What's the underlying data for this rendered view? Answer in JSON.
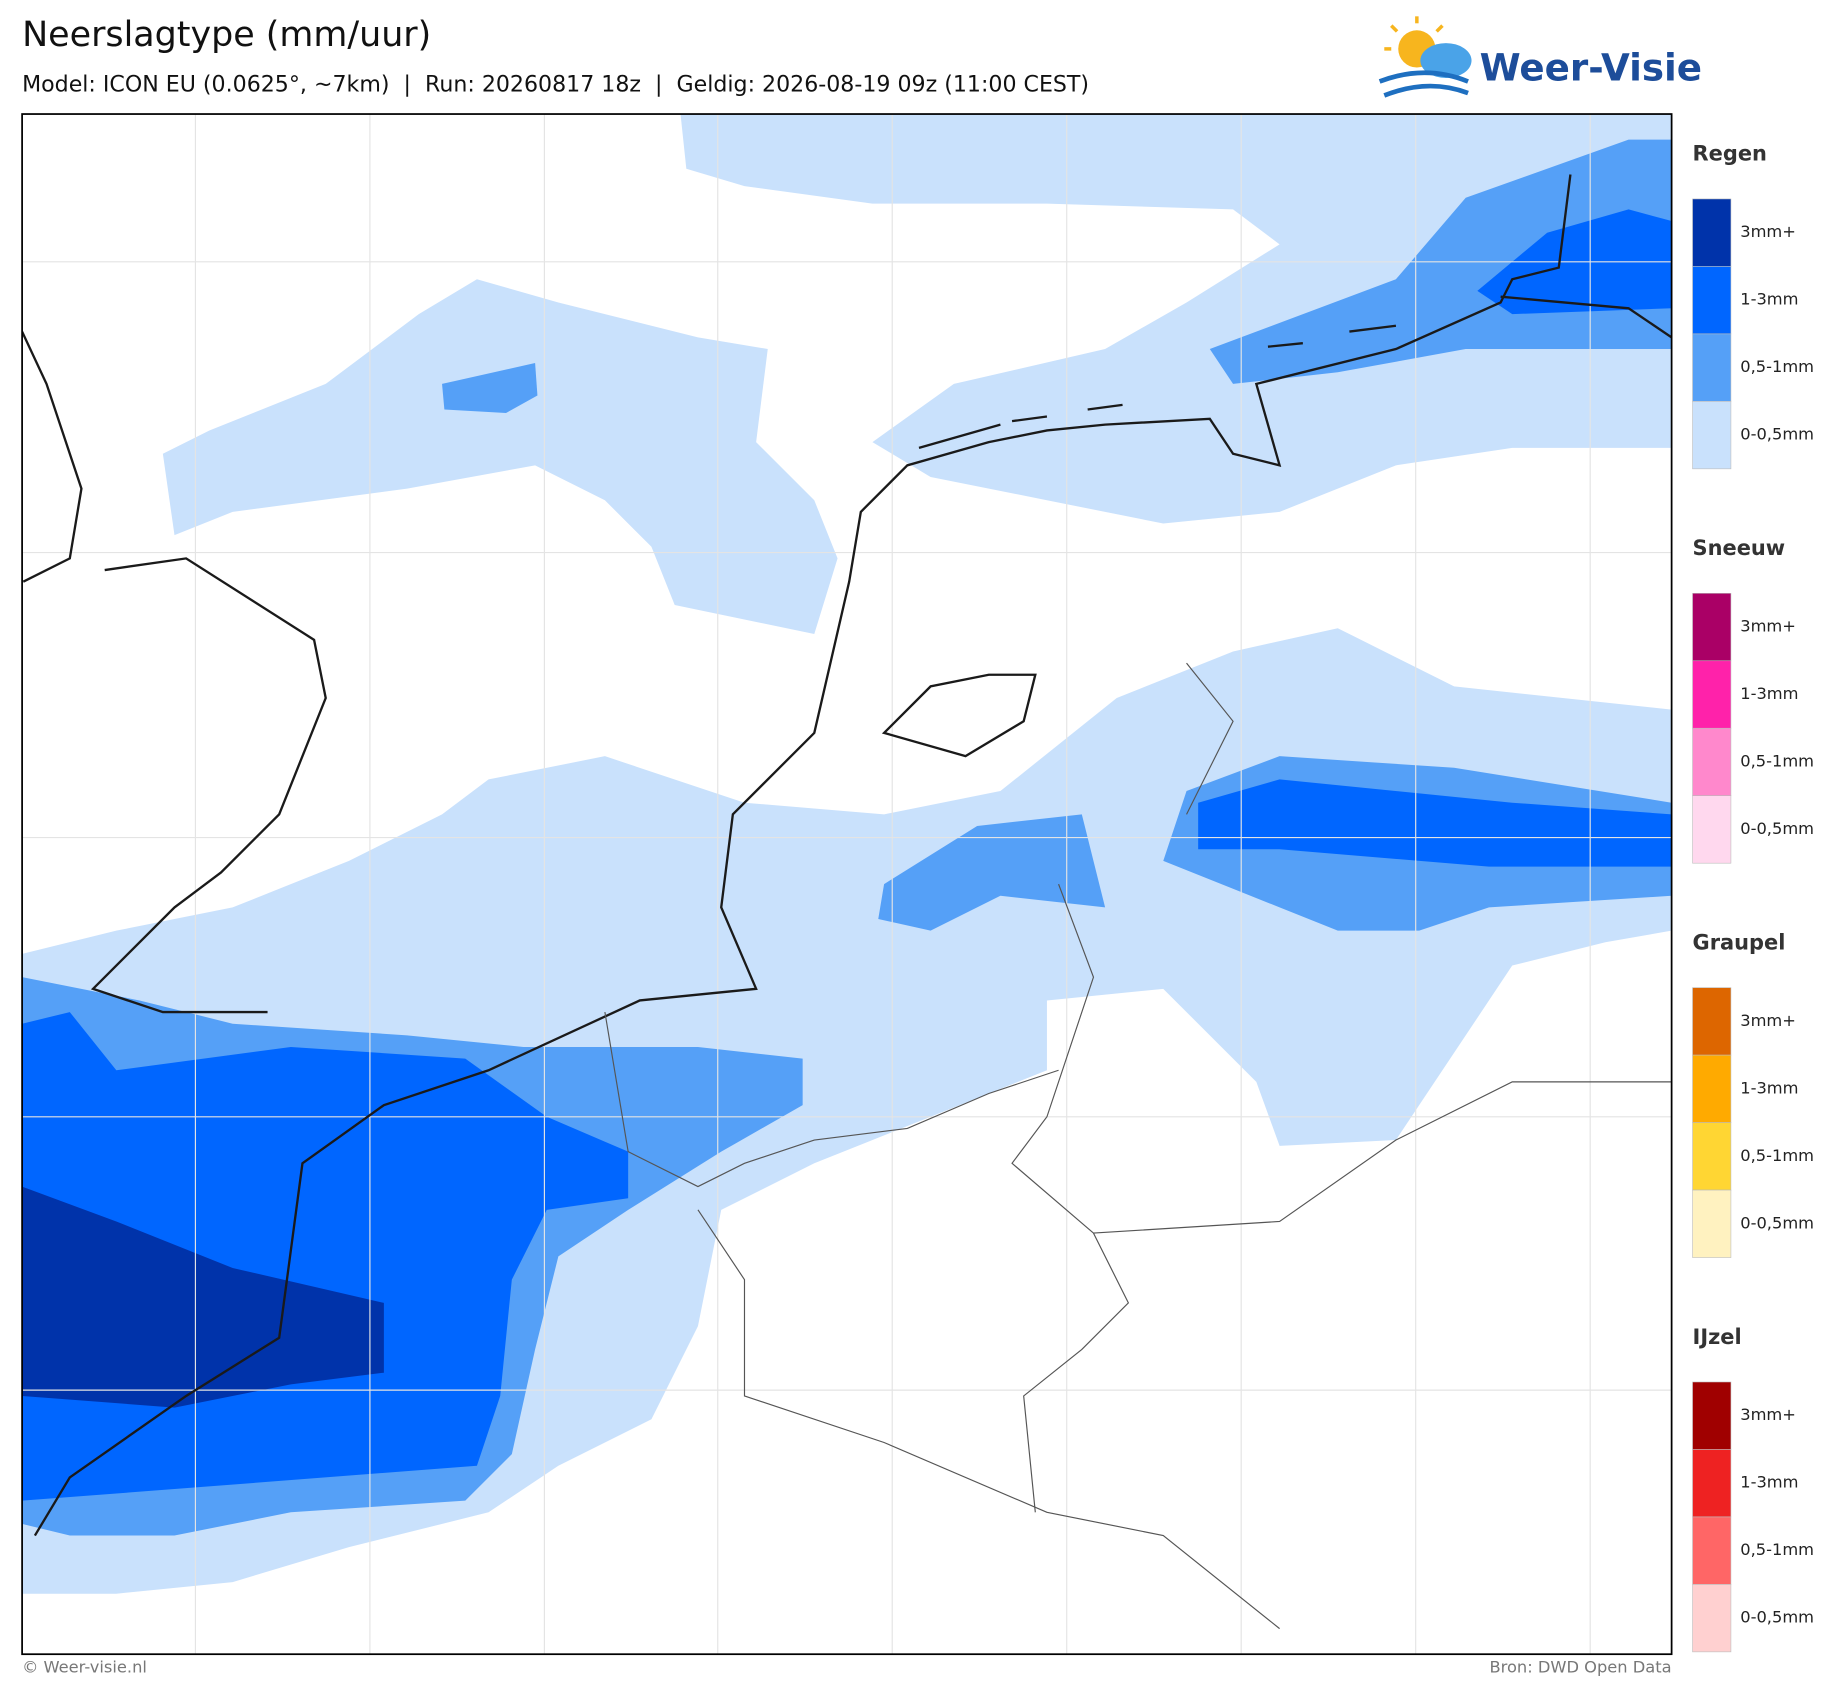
{
  "header": {
    "title": "Neerslagtype (mm/uur)",
    "subtitle": "Model: ICON EU (0.0625°, ~7km)  |  Run: 20260817 18z  |  Geldig: 2026-08-19 09z (11:00 CEST)",
    "logo": "Weer-Visie"
  },
  "legend": [
    {
      "title": "Regen",
      "items": [
        {
          "label": "3mm+",
          "color": "#0033aa"
        },
        {
          "label": "1-3mm",
          "color": "#0066ff"
        },
        {
          "label": "0,5-1mm",
          "color": "#55a0f7"
        },
        {
          "label": "0-0,5mm",
          "color": "#c9e1fc"
        }
      ]
    },
    {
      "title": "Sneeuw",
      "items": [
        {
          "label": "3mm+",
          "color": "#aa0066"
        },
        {
          "label": "1-3mm",
          "color": "#ff22aa"
        },
        {
          "label": "0,5-1mm",
          "color": "#ff88cc"
        },
        {
          "label": "0-0,5mm",
          "color": "#ffd8ee"
        }
      ]
    },
    {
      "title": "Graupel",
      "items": [
        {
          "label": "3mm+",
          "color": "#dd6600"
        },
        {
          "label": "1-3mm",
          "color": "#ffaa00"
        },
        {
          "label": "0,5-1mm",
          "color": "#ffd633"
        },
        {
          "label": "0-0,5mm",
          "color": "#fff2c0"
        }
      ]
    },
    {
      "title": "IJzel",
      "items": [
        {
          "label": "3mm+",
          "color": "#a00000"
        },
        {
          "label": "1-3mm",
          "color": "#ee2222"
        },
        {
          "label": "0,5-1mm",
          "color": "#ff6666"
        },
        {
          "label": "0-0,5mm",
          "color": "#ffd0d0"
        }
      ]
    }
  ],
  "footer": {
    "left": "© Weer-visie.nl",
    "right": "Bron: DWD Open Data"
  }
}
